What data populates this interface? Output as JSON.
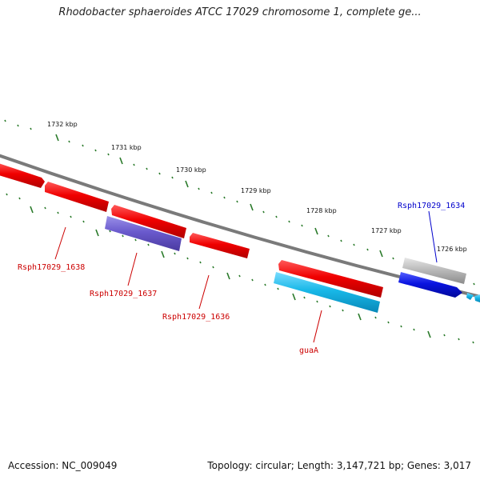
{
  "title": "Rhodobacter sphaeroides ATCC 17029 chromosome 1, complete ge...",
  "footer": {
    "accession": "Accession: NC_009049",
    "summary": "Topology: circular; Length: 3,147,721 bp; Genes: 3,017"
  },
  "ruler": {
    "labels": [
      "1732 kbp",
      "1731 kbp",
      "1730 kbp",
      "1729 kbp",
      "1728 kbp",
      "1727 kbp",
      "1726 kbp"
    ]
  },
  "genes": [
    {
      "label": "Rsph17029_1638",
      "color": "#cc0000"
    },
    {
      "label": "Rsph17029_1637",
      "color": "#cc0000"
    },
    {
      "label": "Rsph17029_1636",
      "color": "#cc0000"
    },
    {
      "label": "guaA",
      "color": "#cc0000"
    },
    {
      "label": "Rsph17029_1634",
      "color": "#0000cc"
    }
  ],
  "colors": {
    "gene_red": "#e60000",
    "gene_purple": "#6a5acd",
    "gene_cyan": "#18b8e8",
    "gene_blue": "#0a14e0",
    "gene_gray": "#b8b8b8",
    "backbone": "#7a7a7a",
    "tick": "#2a7a2a"
  }
}
